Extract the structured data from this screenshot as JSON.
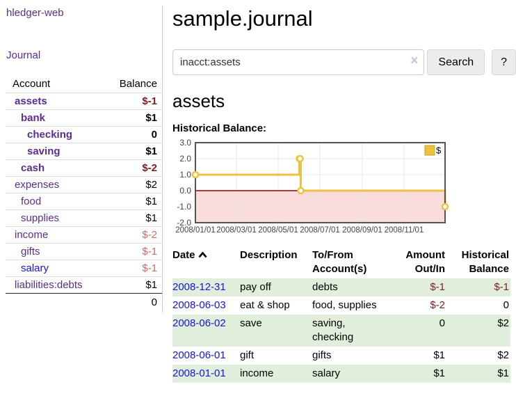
{
  "sidebar": {
    "brand": "hledger-web",
    "nav": [
      {
        "label": "Journal"
      }
    ],
    "accounts_table": {
      "headers": [
        "Account",
        "Balance"
      ],
      "rows": [
        {
          "name": "assets",
          "indent": 1,
          "bold": true,
          "balance": "$-1",
          "balance_tone": "negative",
          "link_tone": "visited"
        },
        {
          "name": "bank",
          "indent": 2,
          "bold": true,
          "balance": "$1",
          "balance_tone": "normal",
          "link_tone": "visited"
        },
        {
          "name": "checking",
          "indent": 3,
          "bold": true,
          "balance": "0",
          "balance_tone": "normal",
          "link_tone": "visited"
        },
        {
          "name": "saving",
          "indent": 3,
          "bold": true,
          "balance": "$1",
          "balance_tone": "normal",
          "link_tone": "visited"
        },
        {
          "name": "cash",
          "indent": 2,
          "bold": true,
          "balance": "$-2",
          "balance_tone": "negative",
          "link_tone": "visited"
        },
        {
          "name": "expenses",
          "indent": 1,
          "bold": false,
          "balance": "$2",
          "balance_tone": "normal",
          "link_tone": "visited"
        },
        {
          "name": "food",
          "indent": 2,
          "bold": false,
          "balance": "$1",
          "balance_tone": "normal",
          "link_tone": "visited"
        },
        {
          "name": "supplies",
          "indent": 2,
          "bold": false,
          "balance": "$1",
          "balance_tone": "normal",
          "link_tone": "visited"
        },
        {
          "name": "income",
          "indent": 1,
          "bold": false,
          "balance": "$-2",
          "balance_tone": "negative-muted",
          "link_tone": "visited"
        },
        {
          "name": "gifts",
          "indent": 2,
          "bold": false,
          "balance": "$-1",
          "balance_tone": "negative-muted",
          "link_tone": "visited"
        },
        {
          "name": "salary",
          "indent": 2,
          "bold": false,
          "balance": "$-1",
          "balance_tone": "negative-muted",
          "link_tone": "unvisited"
        },
        {
          "name": "liabilities:debts",
          "indent": 1,
          "bold": false,
          "balance": "$1",
          "balance_tone": "normal",
          "link_tone": "visited"
        }
      ],
      "total": "0"
    }
  },
  "header": {
    "title": "sample.journal"
  },
  "search": {
    "query": "inacct:assets",
    "clear_icon": "×",
    "search_label": "Search",
    "help_label": "?"
  },
  "account_page": {
    "title": "assets",
    "chart_label": "Historical Balance:"
  },
  "chart_data": {
    "type": "line",
    "title": "Historical Balance",
    "style": "step",
    "series": [
      {
        "name": "$",
        "color": "#edc240",
        "points": [
          {
            "date": "2008-01-01",
            "value": 1
          },
          {
            "date": "2008-06-01",
            "value": 2
          },
          {
            "date": "2008-06-02",
            "value": 2
          },
          {
            "date": "2008-06-03",
            "value": 0
          },
          {
            "date": "2008-12-31",
            "value": -1
          }
        ]
      }
    ],
    "x_ticks": [
      "2008/01/01",
      "2008/03/01",
      "2008/05/01",
      "2008/07/01",
      "2008/09/01",
      "2008/11/01"
    ],
    "y_ticks": [
      "3.0",
      "2.0",
      "1.0",
      "0.0",
      "-1.0",
      "-2.0"
    ],
    "xlim": [
      "2008-01-01",
      "2008-12-31"
    ],
    "ylim": [
      -2,
      3
    ],
    "grid": true,
    "grid_color": "#e7e7e7",
    "zero_line_color": "#8b0000",
    "negative_region_color": "#fbdcdc",
    "legend": {
      "label": "$",
      "position": "top-right"
    }
  },
  "register": {
    "columns": [
      "Date",
      "Description",
      "To/From Account(s)",
      "Amount Out/In",
      "Historical Balance"
    ],
    "sort": {
      "column": "Date",
      "direction": "ascending"
    },
    "rows": [
      {
        "date": "2008-12-31",
        "description": "pay off",
        "accounts": "debts",
        "amount": "$-1",
        "balance": "$-1"
      },
      {
        "date": "2008-06-03",
        "description": "eat & shop",
        "accounts": "food, supplies",
        "amount": "$-2",
        "balance": "0"
      },
      {
        "date": "2008-06-02",
        "description": "save",
        "accounts": "saving, checking",
        "amount": "0",
        "balance": "$2"
      },
      {
        "date": "2008-06-01",
        "description": "gift",
        "accounts": "gifts",
        "amount": "$1",
        "balance": "$2"
      },
      {
        "date": "2008-01-01",
        "description": "income",
        "accounts": "salary",
        "amount": "$1",
        "balance": "$1"
      }
    ]
  },
  "colors": {
    "link_purple": "#5b2d91",
    "link_blue": "#1414dc",
    "negative": "#7c1f21",
    "negative_muted": "#c96d6e",
    "row_green": "#e1eedb",
    "accent_gold": "#edc240"
  }
}
